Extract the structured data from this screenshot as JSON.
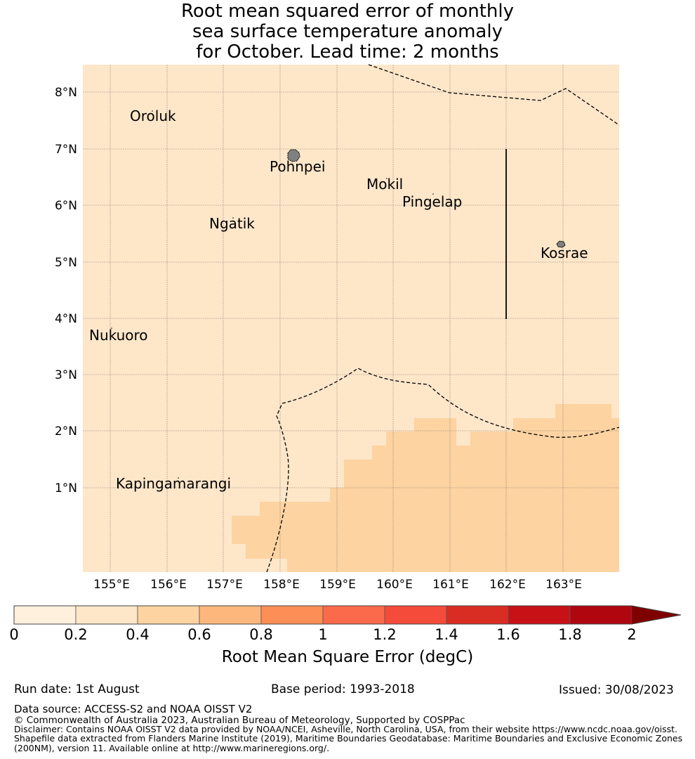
{
  "title": "Root mean squared error of monthly\nsea surface temperature anomaly\n for October. Lead time: 2 months",
  "map": {
    "lat_labels": [
      "8°N",
      "7°N",
      "6°N",
      "5°N",
      "4°N",
      "3°N",
      "2°N",
      "1°N"
    ],
    "lon_labels": [
      "155°E",
      "156°E",
      "157°E",
      "158°E",
      "159°E",
      "160°E",
      "161°E",
      "162°E",
      "163°E"
    ],
    "places": [
      "Oroluk",
      "Pohnpei",
      "Mokil",
      "Pingelap",
      "Ngatik",
      "Kosrae",
      "Nukuoro",
      "Kapingamarangi"
    ],
    "colors": {
      "background_field": "#fee6c9",
      "higher_error_field": "#fdd3a1",
      "dashed_boundary": "#000000",
      "land": "#808080"
    }
  },
  "colorbar": {
    "title": "Root Mean Square Error (degC)",
    "ticks": [
      "0",
      "0.2",
      "0.4",
      "0.6",
      "0.8",
      "1",
      "1.2",
      "1.4",
      "1.6",
      "1.8",
      "2"
    ],
    "colors": [
      "#fff0dd",
      "#fee6c9",
      "#fdd3a1",
      "#fdb77c",
      "#fd8e56",
      "#fb6a4a",
      "#f44b3a",
      "#d92d23",
      "#c71116",
      "#b00610"
    ],
    "extend_color": "#7f0000"
  },
  "footer": {
    "run_date": "Run date: 1st August",
    "base_period": "Base period: 1993-2018",
    "issued": "Issued: 30/08/2023",
    "data_source": "Data source: ACCESS-S2 and NOAA OISST V2",
    "copyright": "© Commonwealth of Australia 2023, Australian Bureau of Meteorology, Supported by COSPPac",
    "disclaimer": "Disclaimer: Contains NOAA OISST V2 data provided by NOAA/NCEI, Asheville, North Carolina, USA, from their website https://www.ncdc.noaa.gov/oisst.",
    "shapefile_1": "Shapefile data extracted from Flanders Marine Institute (2019), Maritime Boundaries Geodatabase: Maritime Boundaries and Exclusive Economic Zones",
    "shapefile_2": "(200NM), version 11. Available online at http://www.marineregions.org/."
  }
}
